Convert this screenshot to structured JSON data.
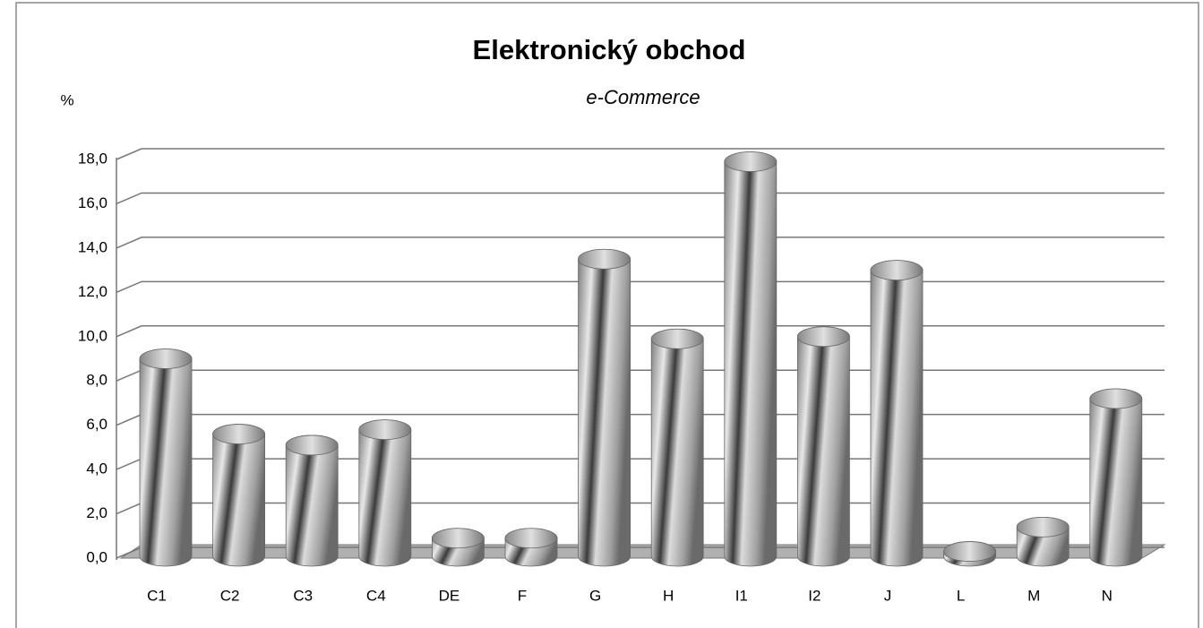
{
  "chart_data": {
    "type": "bar3d",
    "title": "Elektronický obchod",
    "subtitle": "e-Commerce",
    "y_label": "%",
    "categories": [
      "C1",
      "C2",
      "C3",
      "C4",
      "DE",
      "F",
      "G",
      "H",
      "I1",
      "I2",
      "J",
      "L",
      "M",
      "N"
    ],
    "values": [
      9.0,
      5.6,
      5.1,
      5.8,
      0.9,
      0.9,
      13.5,
      9.9,
      17.9,
      10.0,
      13.0,
      0.3,
      1.4,
      7.2
    ],
    "color": "#9a9a9a",
    "ylim": [
      0,
      18
    ],
    "yticks": [
      {
        "value": 0,
        "label": "0,0"
      },
      {
        "value": 2,
        "label": "2,0"
      },
      {
        "value": 4,
        "label": "4,0"
      },
      {
        "value": 6,
        "label": "6,0"
      },
      {
        "value": 8,
        "label": "8,0"
      },
      {
        "value": 10,
        "label": "10,0"
      },
      {
        "value": 12,
        "label": "12,0"
      },
      {
        "value": 14,
        "label": "14,0"
      },
      {
        "value": 16,
        "label": "16,0"
      },
      {
        "value": 18,
        "label": "18,0"
      }
    ],
    "grid": true
  }
}
